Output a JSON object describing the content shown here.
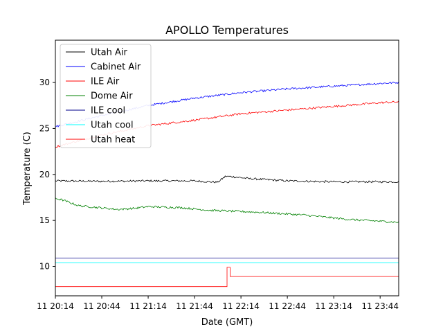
{
  "chart_data": {
    "type": "line",
    "title": "APOLLO Temperatures",
    "xlabel": "Date (GMT)",
    "ylabel": "Temperature (C)",
    "xlim_minutes": [
      0,
      222
    ],
    "ylim": [
      6.8,
      34.6
    ],
    "grid": false,
    "legend_position": "top-left",
    "x_ticks": [
      {
        "minute": 0,
        "label": "11 20:14"
      },
      {
        "minute": 30,
        "label": "11 20:44"
      },
      {
        "minute": 60,
        "label": "11 21:14"
      },
      {
        "minute": 90,
        "label": "11 21:44"
      },
      {
        "minute": 120,
        "label": "11 22:14"
      },
      {
        "minute": 150,
        "label": "11 22:44"
      },
      {
        "minute": 180,
        "label": "11 23:14"
      },
      {
        "minute": 210,
        "label": "11 23:44"
      }
    ],
    "y_ticks": [
      10,
      15,
      20,
      25,
      30
    ],
    "series": [
      {
        "name": "Utah Air",
        "color": "#000000",
        "x": [
          0,
          30,
          60,
          90,
          105,
          110,
          115,
          125,
          150,
          180,
          222
        ],
        "y": [
          19.3,
          19.25,
          19.3,
          19.3,
          19.15,
          19.8,
          19.75,
          19.55,
          19.3,
          19.2,
          19.2
        ]
      },
      {
        "name": "Cabinet Air",
        "color": "#0000ff",
        "x": [
          0,
          30,
          60,
          90,
          120,
          150,
          180,
          210,
          222
        ],
        "y": [
          25.2,
          26.4,
          27.5,
          28.3,
          28.9,
          29.3,
          29.6,
          29.9,
          30.0
        ]
      },
      {
        "name": "ILE Air",
        "color": "#ff0000",
        "x": [
          0,
          30,
          60,
          90,
          120,
          150,
          180,
          210,
          222
        ],
        "y": [
          23.0,
          24.3,
          25.3,
          25.9,
          26.6,
          27.0,
          27.4,
          27.8,
          27.9
        ]
      },
      {
        "name": "Dome Air",
        "color": "#008000",
        "x": [
          0,
          5,
          15,
          40,
          50,
          60,
          80,
          100,
          130,
          160,
          190,
          222
        ],
        "y": [
          17.4,
          17.2,
          16.6,
          16.2,
          16.3,
          16.5,
          16.4,
          16.1,
          15.9,
          15.6,
          15.1,
          14.8
        ]
      },
      {
        "name": "ILE cool",
        "color": "#00008b",
        "x": [
          0,
          222
        ],
        "y": [
          10.9,
          10.9
        ]
      },
      {
        "name": "Utah cool",
        "color": "#00ffff",
        "x": [
          0,
          222
        ],
        "y": [
          10.4,
          10.4
        ]
      },
      {
        "name": "Utah heat",
        "color": "#ff0000",
        "step": true,
        "x": [
          0,
          111,
          111,
          113,
          113,
          222
        ],
        "y": [
          7.8,
          7.8,
          9.9,
          9.9,
          8.9,
          8.9
        ]
      }
    ]
  }
}
